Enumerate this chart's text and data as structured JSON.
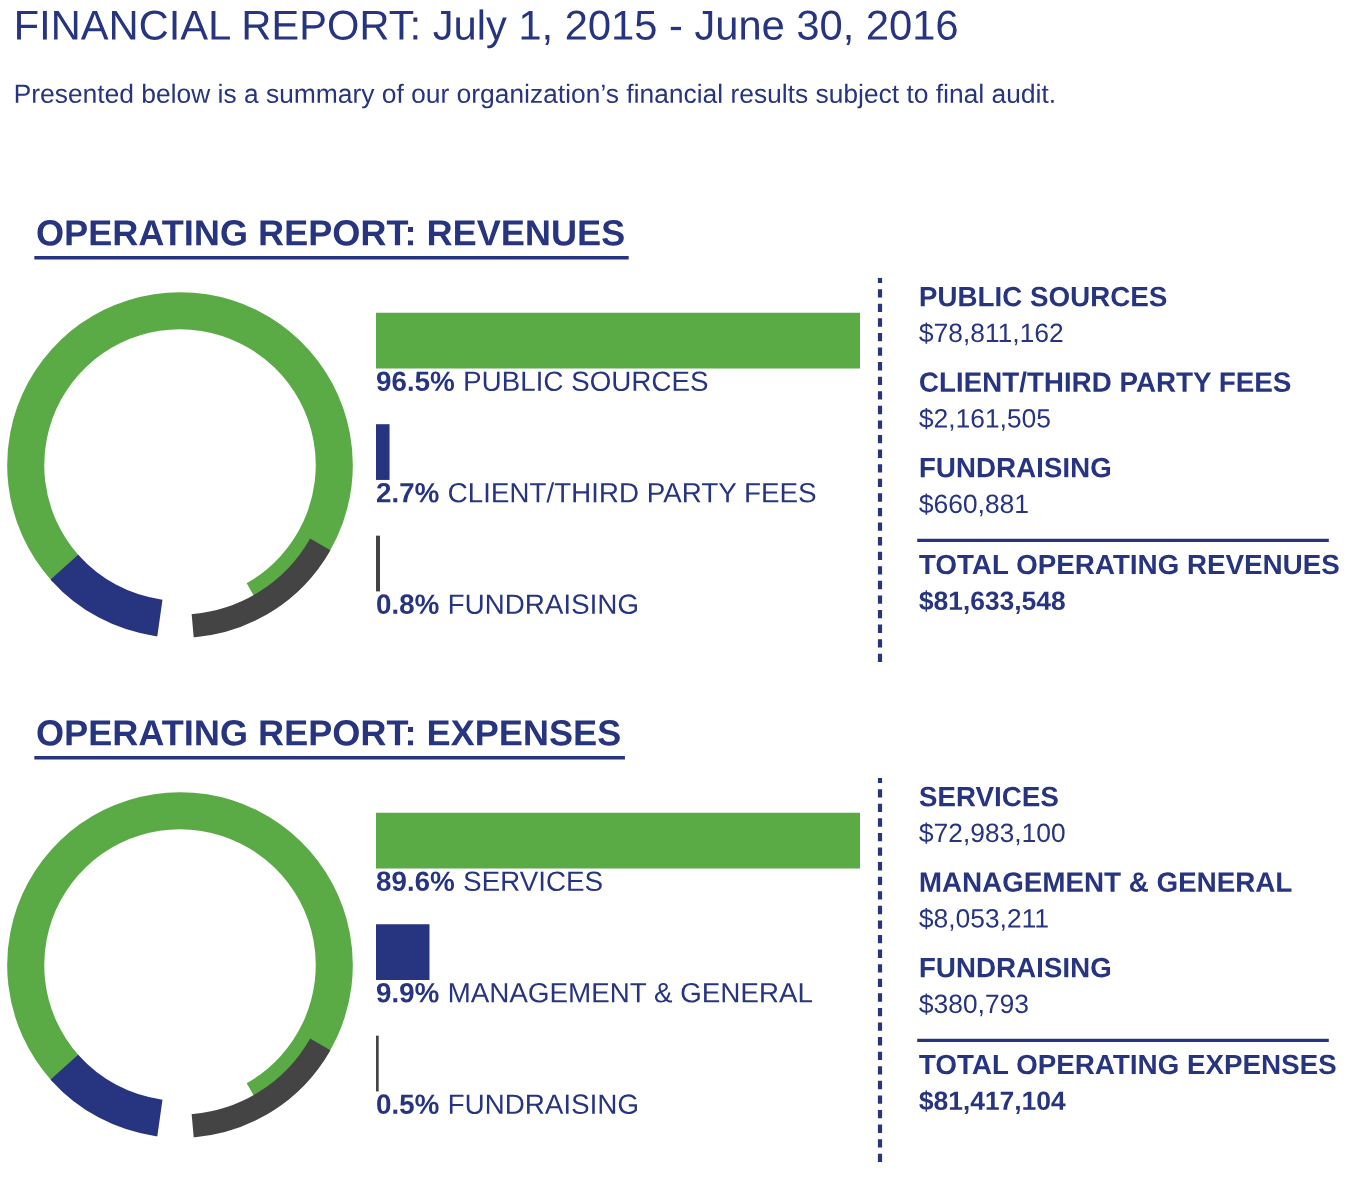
{
  "chart_data": [
    {
      "type": "other",
      "title": "FINANCIAL REPORT: July 1, 2015 - June 30, 2016",
      "subtitle": "Presented below is a summary of our organization’s financial results subject to final audit."
    },
    {
      "type": "bar",
      "title": "OPERATING REPORT: REVENUES",
      "orientation": "horizontal",
      "categories": [
        "PUBLIC SOURCES",
        "CLIENT/THIRD PARTY FEES",
        "FUNDRAISING"
      ],
      "values": [
        96.5,
        2.7,
        0.8
      ],
      "value_labels": [
        "96.5%",
        "2.7%",
        "0.8%"
      ],
      "colors": [
        "#5aaa46",
        "#27347f",
        "#444444"
      ]
    },
    {
      "type": "other",
      "annotations": [
        "PUBLIC SOURCES",
        "$78,811,162",
        "CLIENT/THIRD PARTY FEES",
        "$2,161,505",
        "FUNDRAISING",
        "$660,881",
        "TOTAL OPERATING REVENUES",
        "$81,633,548"
      ]
    },
    {
      "type": "bar",
      "title": "OPERATING REPORT: EXPENSES",
      "orientation": "horizontal",
      "categories": [
        "SERVICES",
        "MANAGEMENT & GENERAL",
        "FUNDRAISING"
      ],
      "values": [
        89.6,
        9.9,
        0.5
      ],
      "value_labels": [
        "89.6%",
        "9.9%",
        "0.5%"
      ],
      "colors": [
        "#5aaa46",
        "#27347f",
        "#444444"
      ]
    },
    {
      "type": "other",
      "annotations": [
        "SERVICES",
        "$72,983,100",
        "MANAGEMENT & GENERAL",
        "$8,053,211",
        "FUNDRAISING",
        "$380,793",
        "TOTAL OPERATING EXPENSES",
        "$81,417,104"
      ]
    }
  ]
}
